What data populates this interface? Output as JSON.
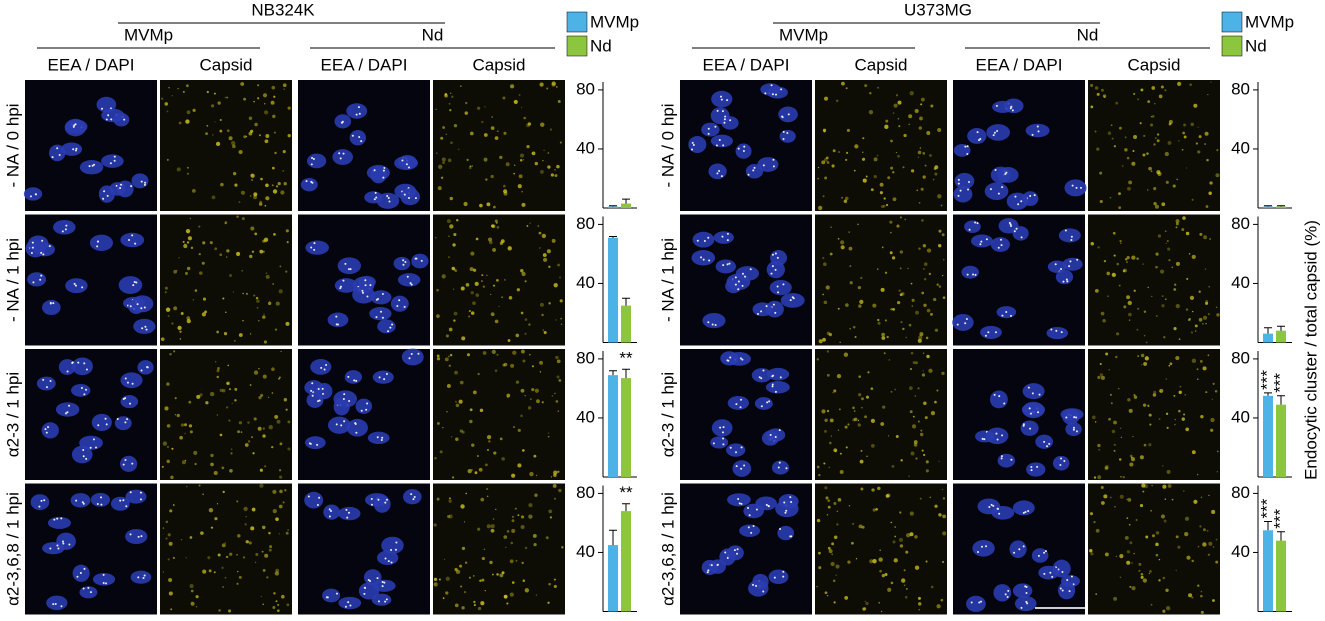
{
  "chart_data": [
    {
      "type": "bar",
      "title": "NB324K",
      "column_headers": [
        {
          "virus": "MVMp",
          "stains": [
            "EEA / DAPI",
            "Capsid"
          ]
        },
        {
          "virus": "Nd",
          "stains": [
            "EEA / DAPI",
            "Capsid"
          ]
        }
      ],
      "categories": [
        "- NA / 0 hpi",
        "- NA / 1 hpi",
        "α2-3 / 1 hpi",
        "α2-3,6,8 / 1 hpi"
      ],
      "series": [
        {
          "name": "MVMp",
          "color": "#4db3e6",
          "values": [
            1,
            71,
            69,
            45
          ],
          "errors": [
            0.5,
            0.8,
            3,
            10
          ],
          "annotations": [
            null,
            null,
            null,
            null
          ]
        },
        {
          "name": "Nd",
          "color": "#8cc63f",
          "values": [
            3,
            25,
            67,
            68
          ],
          "errors": [
            3,
            5,
            6,
            5
          ],
          "annotations": [
            null,
            null,
            "**",
            "**"
          ]
        }
      ],
      "ylim": [
        0,
        84
      ],
      "yticks": [
        40,
        80
      ]
    },
    {
      "type": "bar",
      "title": "U373MG",
      "column_headers": [
        {
          "virus": "MVMp",
          "stains": [
            "EEA / DAPI",
            "Capsid"
          ]
        },
        {
          "virus": "Nd",
          "stains": [
            "EEA / DAPI",
            "Capsid"
          ]
        }
      ],
      "categories": [
        "- NA / 0 hpi",
        "- NA / 1 hpi",
        "α2-3 / 1 hpi",
        "α2-3,6,8 / 1 hpi"
      ],
      "series": [
        {
          "name": "MVMp",
          "color": "#4db3e6",
          "values": [
            1,
            6,
            55,
            55
          ],
          "errors": [
            0.5,
            4,
            2,
            6
          ],
          "annotations": [
            null,
            null,
            "***",
            "***"
          ]
        },
        {
          "name": "Nd",
          "color": "#8cc63f",
          "values": [
            1,
            8,
            49,
            48
          ],
          "errors": [
            0.5,
            3,
            6,
            6
          ],
          "annotations": [
            null,
            null,
            "***",
            "***"
          ]
        }
      ],
      "ylim": [
        0,
        84
      ],
      "yticks": [
        40,
        80
      ],
      "ylabel": "Endocytic cluster / total capsid (%)"
    }
  ]
}
